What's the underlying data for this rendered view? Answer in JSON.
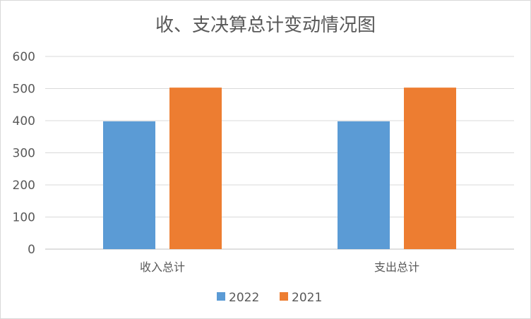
{
  "chart_data": {
    "type": "bar",
    "title": "收、支决算总计变动情况图",
    "categories": [
      "收入总计",
      "支出总计"
    ],
    "series": [
      {
        "name": "2022",
        "values": [
          398,
          398
        ],
        "color": "#5b9bd5"
      },
      {
        "name": "2021",
        "values": [
          503,
          503
        ],
        "color": "#ed7d31"
      }
    ],
    "ylim": [
      0,
      600
    ],
    "yticks": [
      0,
      100,
      200,
      300,
      400,
      500,
      600
    ],
    "grid": true,
    "legend_position": "bottom",
    "xlabel": "",
    "ylabel": ""
  }
}
